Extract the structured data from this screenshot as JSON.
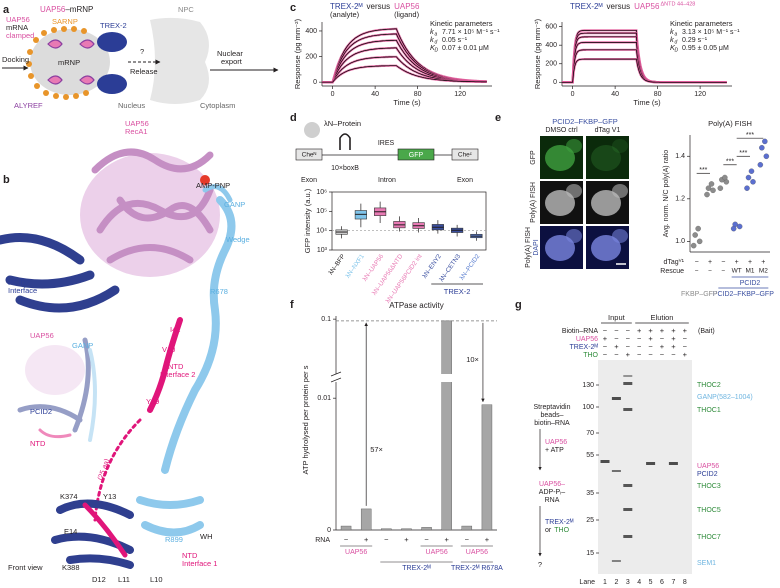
{
  "panel_labels": [
    "a",
    "b",
    "c",
    "d",
    "e",
    "f",
    "g"
  ],
  "a": {
    "uap56": "UAP56",
    "mrnp_suffix": "–mRNP",
    "npc": "NPC",
    "uap56_2": "UAP56",
    "mrna": "mRNA",
    "clamped": "clamped",
    "sarnp": "SARNP",
    "trex2": "TREX-2",
    "mrnp": "mRNP",
    "alyref": "ALYREF",
    "docking": "Docking",
    "question": "?",
    "release": "Release",
    "nuclear": "Nuclear",
    "export": "export",
    "nucleus": "Nucleus",
    "cytoplasm": "Cytoplasm"
  },
  "b": {
    "uap56": "UAP56",
    "reca1": "RecA1",
    "amp": "AMP-PNP",
    "ganp": "GANP",
    "wedge": "Wedge",
    "r678": "R678",
    "pcid2": "PCID2",
    "interface": "Interface",
    "i42": "I42",
    "v40": "V40",
    "ntd2": "NTD",
    "ntd2b": "Interface 2",
    "y39": "Y39",
    "ins_uap56": "UAP56",
    "ins_ganp": "GANP",
    "ins_pcid2": "PCID2",
    "ins_ntd": "NTD",
    "aa": "(25 aa)",
    "k374": "K374",
    "y13": "Y13",
    "r899": "R899",
    "wh": "WH",
    "e14": "E14",
    "k388": "K388",
    "d12": "D12",
    "l11": "L11",
    "l10": "L10",
    "ntd1": "NTD",
    "ntd1b": "Interface 1",
    "front": "Front view"
  },
  "c": {
    "charts": [
      {
        "type": "line",
        "analyte": "TREX-2ᴹ",
        "versus": "versus",
        "ligand": "UAP56",
        "analyte_note": "(analyte)",
        "ligand_note": "(ligand)",
        "kinetic": "Kinetic parameters",
        "params": [
          {
            "k": "k",
            "sub": "a",
            "value": "7.71 × 10⁵ M⁻¹ s⁻¹"
          },
          {
            "k": "k",
            "sub": "d",
            "value": "0.05 s⁻¹"
          },
          {
            "k": "K",
            "sub": "D",
            "value": "0.07 ± 0.01 μM"
          }
        ],
        "xlabel": "Time (s)",
        "ylabel": "Response (pg mm⁻²)",
        "xlim": [
          -10,
          150
        ],
        "ylim": [
          -30,
          470
        ],
        "xticks": [
          0,
          40,
          80,
          120
        ],
        "yticks": [
          0,
          200,
          400
        ],
        "plateaus": [
          420,
          380,
          330,
          270,
          200,
          130
        ],
        "inject_end": 60,
        "on_rate": 0.08,
        "off_rate": 0.05,
        "data_color": "#e05a9a",
        "fit_color": "#000000"
      },
      {
        "type": "line",
        "analyte": "TREX-2ᴹ",
        "versus": "versus",
        "ligand": "UAP56",
        "ligand_sup": "ΔNTD 44–428",
        "kinetic": "Kinetic parameters",
        "params": [
          {
            "k": "k",
            "sub": "a",
            "value": "3.13 × 10⁵ M⁻¹ s⁻¹"
          },
          {
            "k": "k",
            "sub": "d",
            "value": "0.29 s⁻¹"
          },
          {
            "k": "K",
            "sub": "D",
            "value": "0.95 ± 0.05 μM"
          }
        ],
        "xlabel": "Time (s)",
        "ylabel": "Response (pg mm⁻²)",
        "xlim": [
          -10,
          150
        ],
        "ylim": [
          -40,
          650
        ],
        "xticks": [
          0,
          40,
          80,
          120
        ],
        "yticks": [
          0,
          200,
          400,
          600
        ],
        "plateaus": [
          560,
          530,
          490,
          430,
          350,
          250
        ],
        "inject_end": 60,
        "on_rate": 0.6,
        "off_rate": 0.29,
        "data_color": "#e05a9a",
        "fit_color": "#000000"
      }
    ]
  },
  "d": {
    "type": "box",
    "construct": {
      "lambdaN": "λN–Protein",
      "ires": "IRES",
      "gfp": "GFP",
      "chen": "Cheᴺ",
      "chec": "Cheᶜ",
      "boxb": "10×boxB",
      "exon1": "Exon",
      "intron": "Intron",
      "exon2": "Exon"
    },
    "ylabel": "GFP intensity (a.u.)",
    "log": true,
    "ylim": [
      1000,
      1000000
    ],
    "yticks": [
      {
        "value": 1000,
        "label": "10³"
      },
      {
        "value": 10000,
        "label": "10⁴"
      },
      {
        "value": 100000,
        "label": "10⁵"
      },
      {
        "value": 1000000,
        "label": "10⁶"
      }
    ],
    "categories": [
      "λN–BFP",
      "λN–NXF1",
      "λN–UAP56",
      "λN–UAP56ΔNTD",
      "λN–UAP56PCID2 int",
      "λN–ENY2",
      "λN–CETN3",
      "λN–PCID2"
    ],
    "whisker_low": [
      4000,
      15000,
      25000,
      9000,
      8000,
      7000,
      5000,
      3000
    ],
    "q1": [
      6500,
      40000,
      60000,
      14000,
      13000,
      11000,
      8000,
      4300
    ],
    "median": [
      8500,
      70000,
      95000,
      20000,
      18000,
      15000,
      10500,
      5200
    ],
    "q3": [
      11000,
      110000,
      150000,
      30000,
      26000,
      21000,
      13500,
      6500
    ],
    "whisker_high": [
      17000,
      250000,
      320000,
      55000,
      45000,
      35000,
      20000,
      9000
    ],
    "colors": [
      "#cfcfcf",
      "#7fc4ea",
      "#e87ab4",
      "#e87ab4",
      "#e87ab4",
      "#3a4fa0",
      "#3a4fa0",
      "#5b7fd0"
    ],
    "reference": 10000,
    "group_label": "TREX-2"
  },
  "e": {
    "construct": "PCID2–FKBP–GFP",
    "cols": [
      "DMSO ctrl",
      "dTag V1"
    ],
    "rows": [
      "GFP",
      "Poly(A) FISH",
      "Poly(A) FISH"
    ],
    "row3_sub": "DAPI",
    "chart": {
      "type": "dot",
      "title": "Poly(A) FISH",
      "ylabel": "Avg. norm. N/C poly(A) ratio",
      "ylim": [
        0.95,
        1.5
      ],
      "yticks": [
        {
          "value": 1,
          "label": "1.0"
        },
        1.2,
        1.4
      ],
      "groups": [
        [
          0.98,
          1.0,
          1.03,
          1.06
        ],
        [
          1.22,
          1.24,
          1.25,
          1.27
        ],
        [
          1.25,
          1.28,
          1.29,
          1.3
        ],
        [
          1.06,
          1.07,
          1.08
        ],
        [
          1.25,
          1.28,
          1.3,
          1.33
        ],
        [
          1.36,
          1.4,
          1.44,
          1.47
        ]
      ],
      "colors": [
        "#8c8c8c",
        "#8c8c8c",
        "#8c8c8c",
        "#5b6fd0",
        "#5b6fd0",
        "#5b6fd0"
      ],
      "significance": [
        "***",
        "***",
        "***",
        "***"
      ],
      "dtag_label": "dTagⱽ¹",
      "dtag": [
        "−",
        "+",
        "−",
        "+",
        "+",
        "+"
      ],
      "rescue_label": "Rescue",
      "rescue": [
        "−",
        "−",
        "−",
        "WT",
        "M1",
        "M2"
      ],
      "pcid2_label": "PCID2",
      "control_label": "FKBP–GFP",
      "fusion_label": "PCID2–FKBP–GFP"
    }
  },
  "f": {
    "type": "bar",
    "title": "ATPase activity",
    "ylabel": "ATP hydrolysed per protein per s",
    "ylim_lower": [
      0,
      0.011
    ],
    "ylim_upper": [
      0.011,
      0.102
    ],
    "yticks": [
      0,
      0.01,
      0.1
    ],
    "reference": 0.097,
    "values": [
      0.0003,
      0.0016,
      0.0001,
      0.0001,
      0.0002,
      0.097,
      0.0003,
      0.0095
    ],
    "color": "#a6a6a6",
    "rna_label": "RNA",
    "rna": [
      "−",
      "+",
      "−",
      "+",
      "−",
      "+",
      "−",
      "+"
    ],
    "fold": [
      "57×",
      "10×"
    ],
    "group_labels": [
      "UAP56",
      "UAP56",
      "UAP56",
      "TREX-2ᴹ",
      "TREX-2ᴹ R678A"
    ],
    "group_colors": [
      "#d94fa0",
      "#d94fa0",
      "#d94fa0",
      "#2b3d96",
      "#2b3d96"
    ]
  },
  "g": {
    "input": "Input",
    "elution": "Elution",
    "bait": "(Bait)",
    "rows": [
      {
        "label": "Biotin–RNA",
        "color": "#231f20",
        "signs": [
          "−",
          "−",
          "−",
          "+",
          "+",
          "+",
          "+",
          "+"
        ]
      },
      {
        "label": "UAP56",
        "color": "#d94fa0",
        "signs": [
          "+",
          "−",
          "−",
          "−",
          "+",
          "−",
          "+",
          "−"
        ]
      },
      {
        "label": "TREX-2ᴹ",
        "color": "#2b3d96",
        "signs": [
          "−",
          "+",
          "−",
          "−",
          "−",
          "+",
          "+",
          "−"
        ]
      },
      {
        "label": "THO",
        "color": "#2e8b3a",
        "signs": [
          "−",
          "−",
          "+",
          "−",
          "−",
          "−",
          "−",
          "+"
        ]
      }
    ],
    "markers": [
      130,
      100,
      70,
      55,
      35,
      25,
      15
    ],
    "lane_label": "Lane",
    "lanes": [
      1,
      2,
      3,
      4,
      5,
      6,
      7,
      8
    ],
    "proteins": [
      {
        "name": "THOC2",
        "color": "#2e8b3a"
      },
      {
        "name": "GANP(582–1004)",
        "color": "#6fb5e0"
      },
      {
        "name": "THOC1",
        "color": "#2e8b3a"
      },
      {
        "name": "UAP56",
        "color": "#d94fa0"
      },
      {
        "name": "PCID2",
        "color": "#2b3d96"
      },
      {
        "name": "THOC3",
        "color": "#2e8b3a"
      },
      {
        "name": "THOC5",
        "color": "#2e8b3a"
      },
      {
        "name": "THOC7",
        "color": "#2e8b3a"
      },
      {
        "name": "SEM1",
        "color": "#6fb5e0"
      }
    ],
    "flow": {
      "s1": "Streptavidin",
      "s2": "beads–",
      "s3": "biotin–RNA",
      "u1": "UAP56",
      "u2": "+ ATP",
      "c1": "UAP56–",
      "c2": "ADP-Pᵢ–",
      "c3": "RNA",
      "t1": "TREX-2ᴹ",
      "t2": "or",
      "t3": "THO",
      "q": "?"
    }
  }
}
